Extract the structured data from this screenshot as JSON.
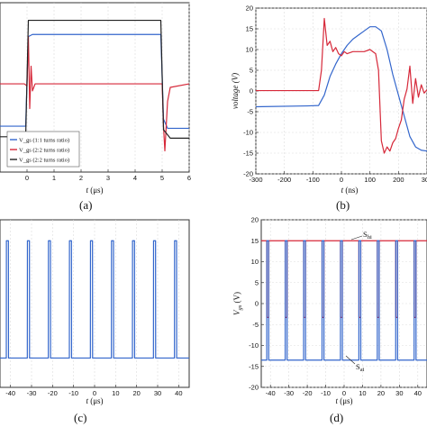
{
  "chart_data": [
    {
      "panel": "(a)",
      "type": "line",
      "xlabel_var": "t",
      "xlabel_unit": " (μs)",
      "xlim": [
        -1,
        6
      ],
      "xticks": [
        "0",
        "1",
        "2",
        "3",
        "4",
        "5",
        "6"
      ],
      "xtick_values": [
        0,
        1,
        2,
        3,
        4,
        5,
        6
      ],
      "grid": true,
      "legend_placement": "bottom-left",
      "series": [
        {
          "name": "V_gs (1:1 turns ratio)",
          "color": "#3366cc",
          "x": [
            -1,
            -0.05,
            0.05,
            0.2,
            4.95,
            5.05,
            5.2,
            6
          ],
          "y": [
            -0.55,
            -0.55,
            0.72,
            0.75,
            0.75,
            -0.45,
            -0.58,
            -0.58
          ]
        },
        {
          "name": "V_gs (2:2 turns ratio)",
          "color": "#d62839",
          "x": [
            -1,
            -0.1,
            0.0,
            0.05,
            0.1,
            0.15,
            0.2,
            0.3,
            4.9,
            5.0,
            5.05,
            5.1,
            5.2,
            5.3,
            6
          ],
          "y": [
            0.05,
            0.05,
            0.02,
            0.72,
            -0.3,
            0.3,
            -0.05,
            0.05,
            0.05,
            0.05,
            -0.55,
            -0.9,
            -0.2,
            0.0,
            0.05
          ]
        },
        {
          "name": "V_gs (2:2 turns ratio)",
          "color": "#222222",
          "x": [
            -1,
            -0.05,
            0.05,
            0.3,
            4.95,
            5.05,
            5.3,
            6
          ],
          "y": [
            -0.7,
            -0.7,
            0.95,
            0.95,
            0.95,
            -0.6,
            -0.72,
            -0.72
          ]
        }
      ]
    },
    {
      "panel": "(b)",
      "type": "line",
      "xlabel_var": "t",
      "xlabel_unit": " (ns)",
      "ylabel": "voltage (V)",
      "xlim": [
        -300,
        300
      ],
      "ylim": [
        -20,
        20
      ],
      "xticks": [
        "-300",
        "-200",
        "-100",
        "0",
        "100",
        "200",
        "300"
      ],
      "xtick_values": [
        -300,
        -200,
        -100,
        0,
        100,
        200,
        300
      ],
      "yticks": [
        "-20",
        "-15",
        "-10",
        "-5",
        "0",
        "5",
        "10",
        "15",
        "20"
      ],
      "ytick_values": [
        -20,
        -15,
        -10,
        -5,
        0,
        5,
        10,
        15,
        20
      ],
      "grid": true,
      "series": [
        {
          "color": "#3366cc",
          "x": [
            -300,
            -120,
            -80,
            -60,
            -40,
            -20,
            0,
            20,
            40,
            60,
            80,
            100,
            120,
            140,
            160,
            180,
            200,
            220,
            240,
            260,
            280,
            300
          ],
          "y": [
            -3.8,
            -3.6,
            -3.5,
            -1,
            3.5,
            6.5,
            9,
            11,
            12.5,
            13.5,
            14.5,
            15.5,
            15.5,
            14.5,
            10,
            4,
            -1,
            -6,
            -11,
            -13.5,
            -14.3,
            -14.5
          ]
        },
        {
          "color": "#d62839",
          "x": [
            -300,
            -80,
            -70,
            -60,
            -50,
            -40,
            -30,
            -20,
            -10,
            0,
            10,
            20,
            40,
            60,
            80,
            100,
            120,
            130,
            140,
            150,
            160,
            170,
            180,
            190,
            200,
            210,
            220,
            230,
            240,
            250,
            260,
            270,
            280,
            290,
            300
          ],
          "y": [
            0.1,
            0.1,
            5,
            17.5,
            11,
            12,
            9.5,
            10.5,
            9,
            8.5,
            9.5,
            9,
            9.5,
            9.5,
            9.5,
            10,
            9,
            5,
            -12,
            -15,
            -13.5,
            -14.5,
            -12.5,
            -11.5,
            -9,
            -7,
            -2,
            0.5,
            6,
            -3,
            3,
            -1.5,
            1.5,
            -0.5,
            0.3
          ]
        }
      ]
    },
    {
      "panel": "(c)",
      "type": "line",
      "xlabel_var": "t",
      "xlabel_unit": " (μs)",
      "xlim": [
        -45,
        45
      ],
      "xticks": [
        "-40",
        "-30",
        "-20",
        "-10",
        "0",
        "10",
        "20",
        "30",
        "40"
      ],
      "xtick_values": [
        -40,
        -30,
        -20,
        -10,
        0,
        10,
        20,
        30,
        40
      ],
      "grid": true,
      "pulse_starts": [
        -42,
        -32,
        -22,
        -12,
        -2,
        8,
        18,
        28,
        38
      ],
      "pulse_width": 1,
      "high": 15,
      "low": -13,
      "color": "#3366cc"
    },
    {
      "panel": "(d)",
      "type": "line",
      "xlabel_var": "t",
      "xlabel_unit": " (μs)",
      "ylabel_var": "V",
      "ylabel_sub": "gs",
      "ylabel_unit": " (V)",
      "xlim": [
        -45,
        45
      ],
      "ylim": [
        -20,
        20
      ],
      "xticks": [
        "-40",
        "-30",
        "-20",
        "-10",
        "0",
        "10",
        "20",
        "30",
        "40"
      ],
      "xtick_values": [
        -40,
        -30,
        -20,
        -10,
        0,
        10,
        20,
        30,
        40
      ],
      "yticks": [
        "-20",
        "-15",
        "-10",
        "-5",
        "0",
        "5",
        "10",
        "15",
        "20"
      ],
      "ytick_values": [
        -20,
        -15,
        -10,
        -5,
        0,
        5,
        10,
        15,
        20
      ],
      "grid": true,
      "pulse_starts": [
        -42,
        -32,
        -22,
        -12,
        -2,
        8,
        18,
        28,
        38
      ],
      "pulse_width": 1,
      "series": [
        {
          "label_main": "S",
          "label_sub": "hi",
          "color": "#d62839",
          "base": 15,
          "pulse": -3.3
        },
        {
          "label_main": "S",
          "label_sub": "ai",
          "color": "#3366cc",
          "base": -13.5,
          "pulse": 15
        }
      ]
    }
  ]
}
